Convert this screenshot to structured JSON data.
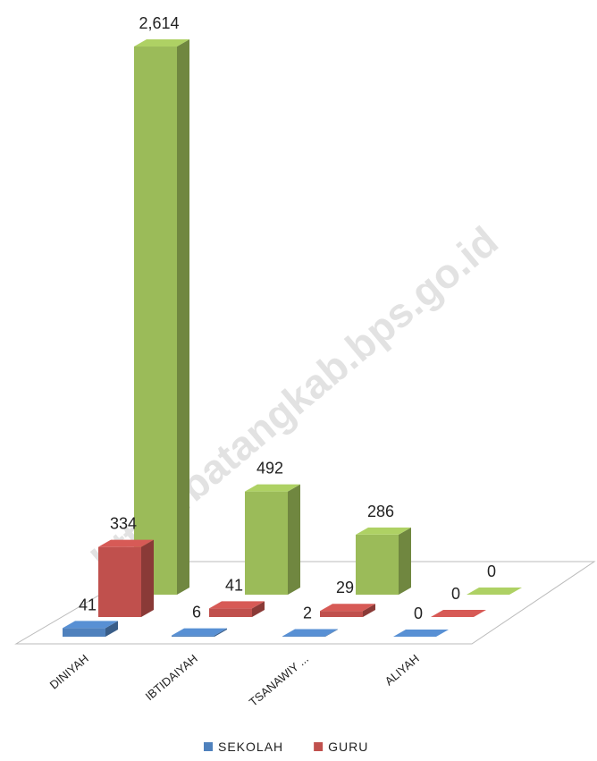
{
  "chart_data": {
    "type": "bar3d",
    "categories": [
      "DINIYAH",
      "IBTIDAIYAH",
      "TSANAWIY ...",
      "ALIYAH"
    ],
    "series": [
      {
        "name": "SEKOLAH",
        "color": "#4f81bd",
        "values": [
          41,
          6,
          2,
          0
        ]
      },
      {
        "name": "GURU",
        "color": "#c0504d",
        "values": [
          334,
          41,
          29,
          0
        ]
      },
      {
        "color": "#9bbb59",
        "values": [
          2614,
          492,
          286,
          0
        ],
        "value_labels": [
          "2,614",
          "492",
          "286",
          "0"
        ]
      }
    ],
    "legend": "bottom",
    "watermark": "http://batangkab.bps.go.id"
  }
}
